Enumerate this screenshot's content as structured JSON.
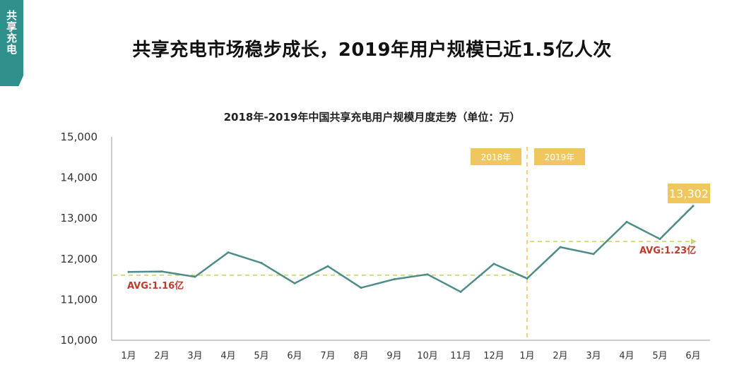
{
  "side_tab": {
    "label": "共享充电"
  },
  "headline": "共享充电市场稳步成长，2019年用户规模已近1.5亿人次",
  "chart_data": {
    "type": "line",
    "title": "2018年-2019年中国共享充电用户规模月度走势（单位：万）",
    "categories": [
      "1月",
      "2月",
      "3月",
      "4月",
      "5月",
      "6月",
      "7月",
      "8月",
      "9月",
      "10月",
      "11月",
      "12月",
      "1月",
      "2月",
      "3月",
      "4月",
      "5月",
      "6月"
    ],
    "values": [
      11680,
      11690,
      11560,
      12160,
      11900,
      11400,
      11820,
      11290,
      11500,
      11620,
      11190,
      11880,
      11520,
      12290,
      12120,
      12910,
      12490,
      13302
    ],
    "ylim": [
      10000,
      15000
    ],
    "yticks": [
      "10,000",
      "11,000",
      "12,000",
      "13,000",
      "14,000",
      "15,000"
    ],
    "line_color": "#4e8c88",
    "avg_color": "#c7d86a",
    "badge_color": "#f0c75e",
    "year_labels": [
      "2018年",
      "2019年"
    ],
    "annotations": {
      "avg_2018": {
        "label": "AVG:1.16亿",
        "value": 11600
      },
      "avg_2019": {
        "label": "AVG:1.23亿",
        "value": 12430
      },
      "last_value_label": "13,302"
    }
  }
}
